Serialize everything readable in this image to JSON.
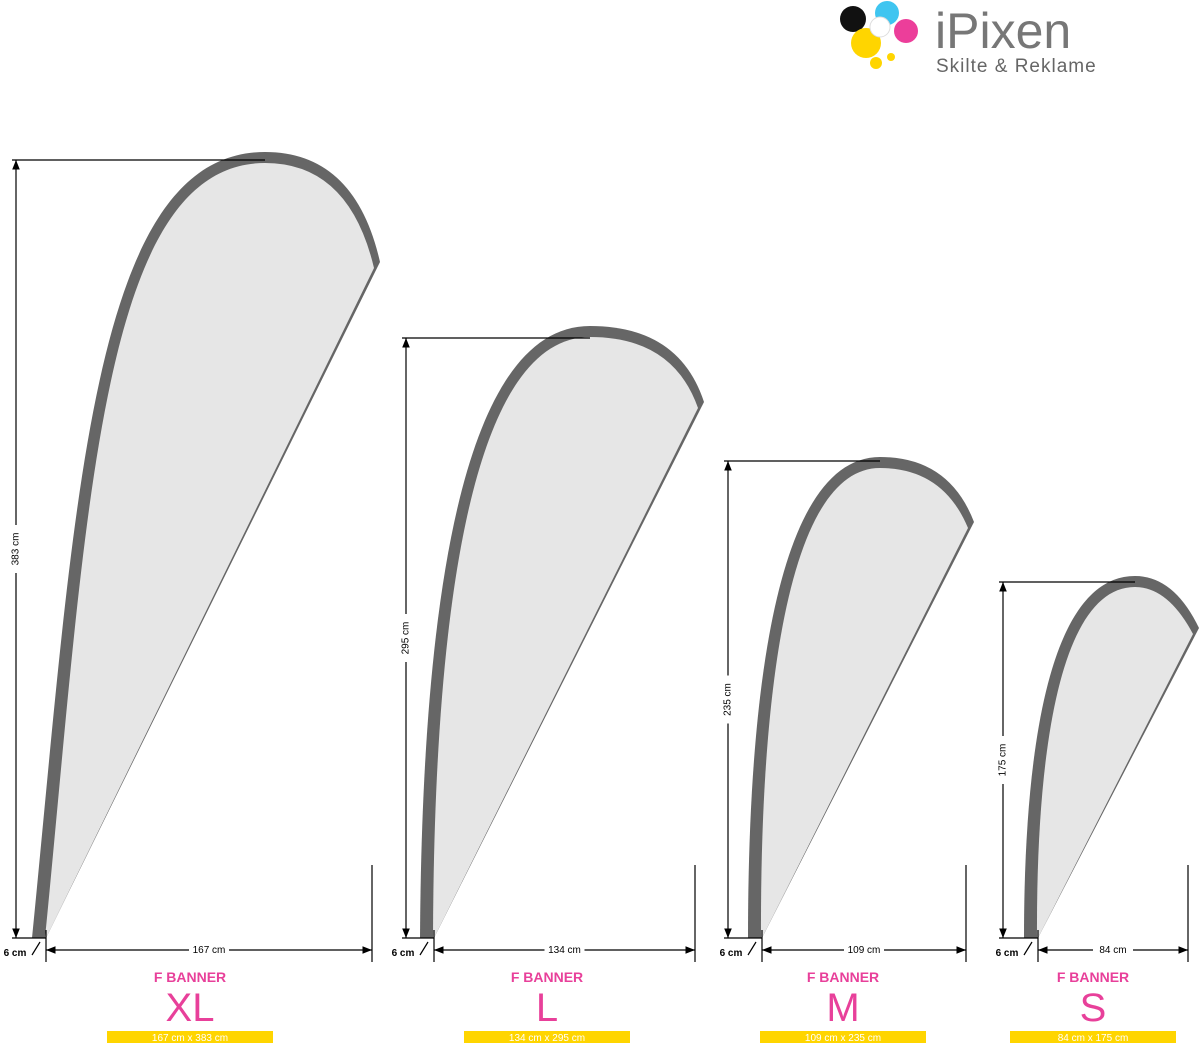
{
  "logo": {
    "name": "iPixen",
    "tagline": "Skilte & Reklame"
  },
  "banners": [
    {
      "height_label": "383 cm",
      "width_label": "167 cm",
      "pole_label": "6 cm",
      "type": "F BANNER",
      "size": "XL",
      "dimensions": "167 cm x 383 cm"
    },
    {
      "height_label": "295 cm",
      "width_label": "134 cm",
      "pole_label": "6 cm",
      "type": "F BANNER",
      "size": "L",
      "dimensions": "134 cm x 295 cm"
    },
    {
      "height_label": "235 cm",
      "width_label": "109 cm",
      "pole_label": "6 cm",
      "type": "F BANNER",
      "size": "M",
      "dimensions": "109 cm x 235 cm"
    },
    {
      "height_label": "175 cm",
      "width_label": "84 cm",
      "pole_label": "6 cm",
      "type": "F BANNER",
      "size": "S",
      "dimensions": "84 cm x 175 cm"
    }
  ]
}
